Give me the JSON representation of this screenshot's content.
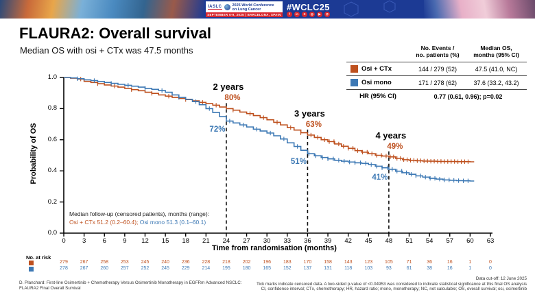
{
  "header": {
    "iaslc": "IASLC",
    "conference_line1": "2025 World Conference",
    "conference_line2": "on Lung Cancer",
    "date_bar": "SEPTEMBER 6-9, 2025  |  BARCELONA, SPAIN",
    "hashtag": "#WCLC25",
    "social_icons": [
      "facebook",
      "linkedin",
      "x",
      "instagram",
      "youtube",
      "threads"
    ]
  },
  "title": "FLAURA2: Overall survival",
  "subtitle": "Median OS with osi + CTx was 47.5 months",
  "summary_table": {
    "h_events_1": "No. Events /",
    "h_events_2": "no. patients (%)",
    "h_median_1": "Median OS,",
    "h_median_2": "months (95% CI)",
    "rows": [
      {
        "label": "Osi + CTx",
        "events": "144 / 279 (52)",
        "median": "47.5 (41.0, NC)"
      },
      {
        "label": "Osi mono",
        "events": "171 / 278 (62)",
        "median": "37.6 (33.2, 43.2)"
      }
    ],
    "hr_label": "HR (95% CI)",
    "hr_value": "0.77 (0.61, 0.96); p=0.02"
  },
  "chart_data": {
    "type": "line",
    "title": "FLAURA2 overall survival Kaplan-Meier",
    "xlabel": "Time from randomisation (months)",
    "ylabel": "Probability of OS",
    "xlim": [
      0,
      63
    ],
    "ylim": [
      0.0,
      1.0
    ],
    "xticks": [
      0,
      3,
      6,
      9,
      12,
      15,
      18,
      21,
      24,
      27,
      30,
      33,
      36,
      39,
      42,
      45,
      48,
      51,
      54,
      57,
      60,
      63
    ],
    "yticks": [
      "0.0",
      "0.2",
      "0.4",
      "0.6",
      "0.8",
      "1.0"
    ],
    "grid": false,
    "series": [
      {
        "name": "Osi + CTx",
        "color": "#BE501E",
        "step_points": [
          [
            0,
            1.0
          ],
          [
            1,
            0.995
          ],
          [
            2,
            0.99
          ],
          [
            3,
            0.975
          ],
          [
            4,
            0.968
          ],
          [
            5,
            0.96
          ],
          [
            6,
            0.952
          ],
          [
            7,
            0.945
          ],
          [
            8,
            0.938
          ],
          [
            9,
            0.93
          ],
          [
            10,
            0.922
          ],
          [
            11,
            0.915
          ],
          [
            12,
            0.905
          ],
          [
            13,
            0.898
          ],
          [
            14,
            0.888
          ],
          [
            15,
            0.88
          ],
          [
            16,
            0.872
          ],
          [
            17,
            0.865
          ],
          [
            18,
            0.858
          ],
          [
            19,
            0.85
          ],
          [
            20,
            0.84
          ],
          [
            21,
            0.832
          ],
          [
            22,
            0.822
          ],
          [
            23,
            0.81
          ],
          [
            24,
            0.8
          ],
          [
            25,
            0.79
          ],
          [
            26,
            0.778
          ],
          [
            27,
            0.768
          ],
          [
            28,
            0.755
          ],
          [
            29,
            0.742
          ],
          [
            30,
            0.728
          ],
          [
            31,
            0.712
          ],
          [
            32,
            0.695
          ],
          [
            33,
            0.678
          ],
          [
            34,
            0.662
          ],
          [
            35,
            0.645
          ],
          [
            36,
            0.63
          ],
          [
            37,
            0.615
          ],
          [
            38,
            0.6
          ],
          [
            39,
            0.588
          ],
          [
            40,
            0.573
          ],
          [
            41,
            0.558
          ],
          [
            42,
            0.545
          ],
          [
            43,
            0.53
          ],
          [
            44,
            0.52
          ],
          [
            45,
            0.51
          ],
          [
            46,
            0.5
          ],
          [
            47,
            0.495
          ],
          [
            48,
            0.49
          ],
          [
            49,
            0.48
          ],
          [
            50,
            0.472
          ],
          [
            51,
            0.468
          ],
          [
            52,
            0.465
          ],
          [
            53,
            0.463
          ],
          [
            54,
            0.462
          ],
          [
            55,
            0.461
          ],
          [
            56,
            0.46
          ],
          [
            57,
            0.46
          ],
          [
            58,
            0.459
          ],
          [
            59,
            0.459
          ],
          [
            60,
            0.458
          ]
        ],
        "censor_months": [
          2.5,
          5,
          7.5,
          10,
          13,
          15.5,
          18,
          20.5,
          22.5,
          25,
          27.5,
          29.5,
          31.5,
          33.5,
          35,
          36.5,
          37.5,
          38.5,
          39.2,
          39.9,
          40.6,
          41.3,
          42,
          42.7,
          43.4,
          44.1,
          44.8,
          45.5,
          46.2,
          46.9,
          47.6,
          48.2,
          48.7,
          49.2,
          49.7,
          50.2,
          50.7,
          51.2,
          51.7,
          52.2,
          52.7,
          53.2,
          53.7,
          54.2,
          54.7,
          55.2,
          55.7,
          56.2,
          56.7,
          57.2,
          57.7,
          58.2,
          58.7,
          59.2,
          59.7
        ]
      },
      {
        "name": "Osi mono",
        "color": "#3C78B4",
        "step_points": [
          [
            0,
            1.0
          ],
          [
            1,
            0.997
          ],
          [
            2,
            0.992
          ],
          [
            3,
            0.985
          ],
          [
            4,
            0.98
          ],
          [
            5,
            0.974
          ],
          [
            6,
            0.968
          ],
          [
            7,
            0.962
          ],
          [
            8,
            0.956
          ],
          [
            9,
            0.95
          ],
          [
            10,
            0.944
          ],
          [
            11,
            0.938
          ],
          [
            12,
            0.93
          ],
          [
            13,
            0.924
          ],
          [
            14,
            0.916
          ],
          [
            15,
            0.905
          ],
          [
            16,
            0.888
          ],
          [
            17,
            0.872
          ],
          [
            18,
            0.86
          ],
          [
            19,
            0.845
          ],
          [
            20,
            0.825
          ],
          [
            21,
            0.8
          ],
          [
            22,
            0.775
          ],
          [
            23,
            0.748
          ],
          [
            24,
            0.72
          ],
          [
            25,
            0.708
          ],
          [
            26,
            0.695
          ],
          [
            27,
            0.682
          ],
          [
            28,
            0.668
          ],
          [
            29,
            0.656
          ],
          [
            30,
            0.643
          ],
          [
            31,
            0.625
          ],
          [
            32,
            0.605
          ],
          [
            33,
            0.58
          ],
          [
            34,
            0.557
          ],
          [
            35,
            0.532
          ],
          [
            36,
            0.51
          ],
          [
            37,
            0.497
          ],
          [
            38,
            0.486
          ],
          [
            39,
            0.477
          ],
          [
            40,
            0.468
          ],
          [
            41,
            0.462
          ],
          [
            42,
            0.457
          ],
          [
            43,
            0.452
          ],
          [
            44,
            0.448
          ],
          [
            45,
            0.44
          ],
          [
            46,
            0.43
          ],
          [
            47,
            0.42
          ],
          [
            48,
            0.41
          ],
          [
            49,
            0.398
          ],
          [
            50,
            0.388
          ],
          [
            51,
            0.378
          ],
          [
            52,
            0.368
          ],
          [
            53,
            0.36
          ],
          [
            54,
            0.352
          ],
          [
            55,
            0.347
          ],
          [
            56,
            0.342
          ],
          [
            57,
            0.339
          ],
          [
            58,
            0.337
          ],
          [
            59,
            0.336
          ],
          [
            60,
            0.335
          ]
        ],
        "censor_months": [
          2,
          4.5,
          7,
          9.5,
          12,
          14.5,
          17,
          19.5,
          21.5,
          24.5,
          26.5,
          28.5,
          30.5,
          32.5,
          34.5,
          36.2,
          37.2,
          38.2,
          39,
          39.8,
          40.6,
          41.4,
          42.2,
          43,
          43.8,
          44.6,
          45.4,
          46.2,
          47,
          47.8,
          48.5,
          49.2,
          49.9,
          50.6,
          51.3,
          52,
          52.7,
          53.4,
          54.1,
          54.8,
          55.5,
          56.2,
          56.9,
          57.6,
          58.3,
          59,
          59.7
        ]
      }
    ],
    "landmarks": [
      {
        "label": "2 years",
        "month": 24,
        "osi_ctx_pct": 80,
        "osi_mono_pct": 72
      },
      {
        "label": "3 years",
        "month": 36,
        "osi_ctx_pct": 63,
        "osi_mono_pct": 51
      },
      {
        "label": "4 years",
        "month": 48,
        "osi_ctx_pct": 49,
        "osi_mono_pct": 41
      }
    ]
  },
  "median_followup": {
    "label": "Median follow-up (censored patients), months (range):",
    "osi_ctx": "Osi + CTx 51.2 (0.2–60.4);",
    "osi_mono": "Osi mono 51.3 (0.1–60.1)"
  },
  "risk_table": {
    "title": "No. at risk",
    "rows": [
      {
        "name": "Osi + CTx",
        "color": "#BE501E",
        "values": [
          279,
          267,
          258,
          253,
          245,
          240,
          236,
          228,
          218,
          202,
          196,
          183,
          170,
          158,
          143,
          123,
          105,
          71,
          36,
          16,
          1,
          0
        ]
      },
      {
        "name": "Osi mono",
        "color": "#3C78B4",
        "values": [
          278,
          267,
          260,
          257,
          252,
          245,
          229,
          214,
          195,
          180,
          165,
          152,
          137,
          131,
          118,
          103,
          93,
          61,
          38,
          16,
          1,
          0
        ]
      }
    ]
  },
  "footer": {
    "left_line1": "D. Planchard: First-line Osimertinib + Chemotherapy Versus Osimertinib Monotherapy in EGFRm Advanced NSCLC:",
    "left_line2": "FLAURA2 Final Overall Survival",
    "cutoff": "Data cut-off: 12 June 2025",
    "note1": "Tick marks indicate censored data. A two-sided p-value of <0.04953 was considered to indicate statistical significance at this final OS analysis",
    "note2": "CI, confidence interval; CTx, chemotherapy; HR, hazard ratio; mono, monotherapy; NC, not calculable; OS, overall survival; osi, osimertinib"
  }
}
